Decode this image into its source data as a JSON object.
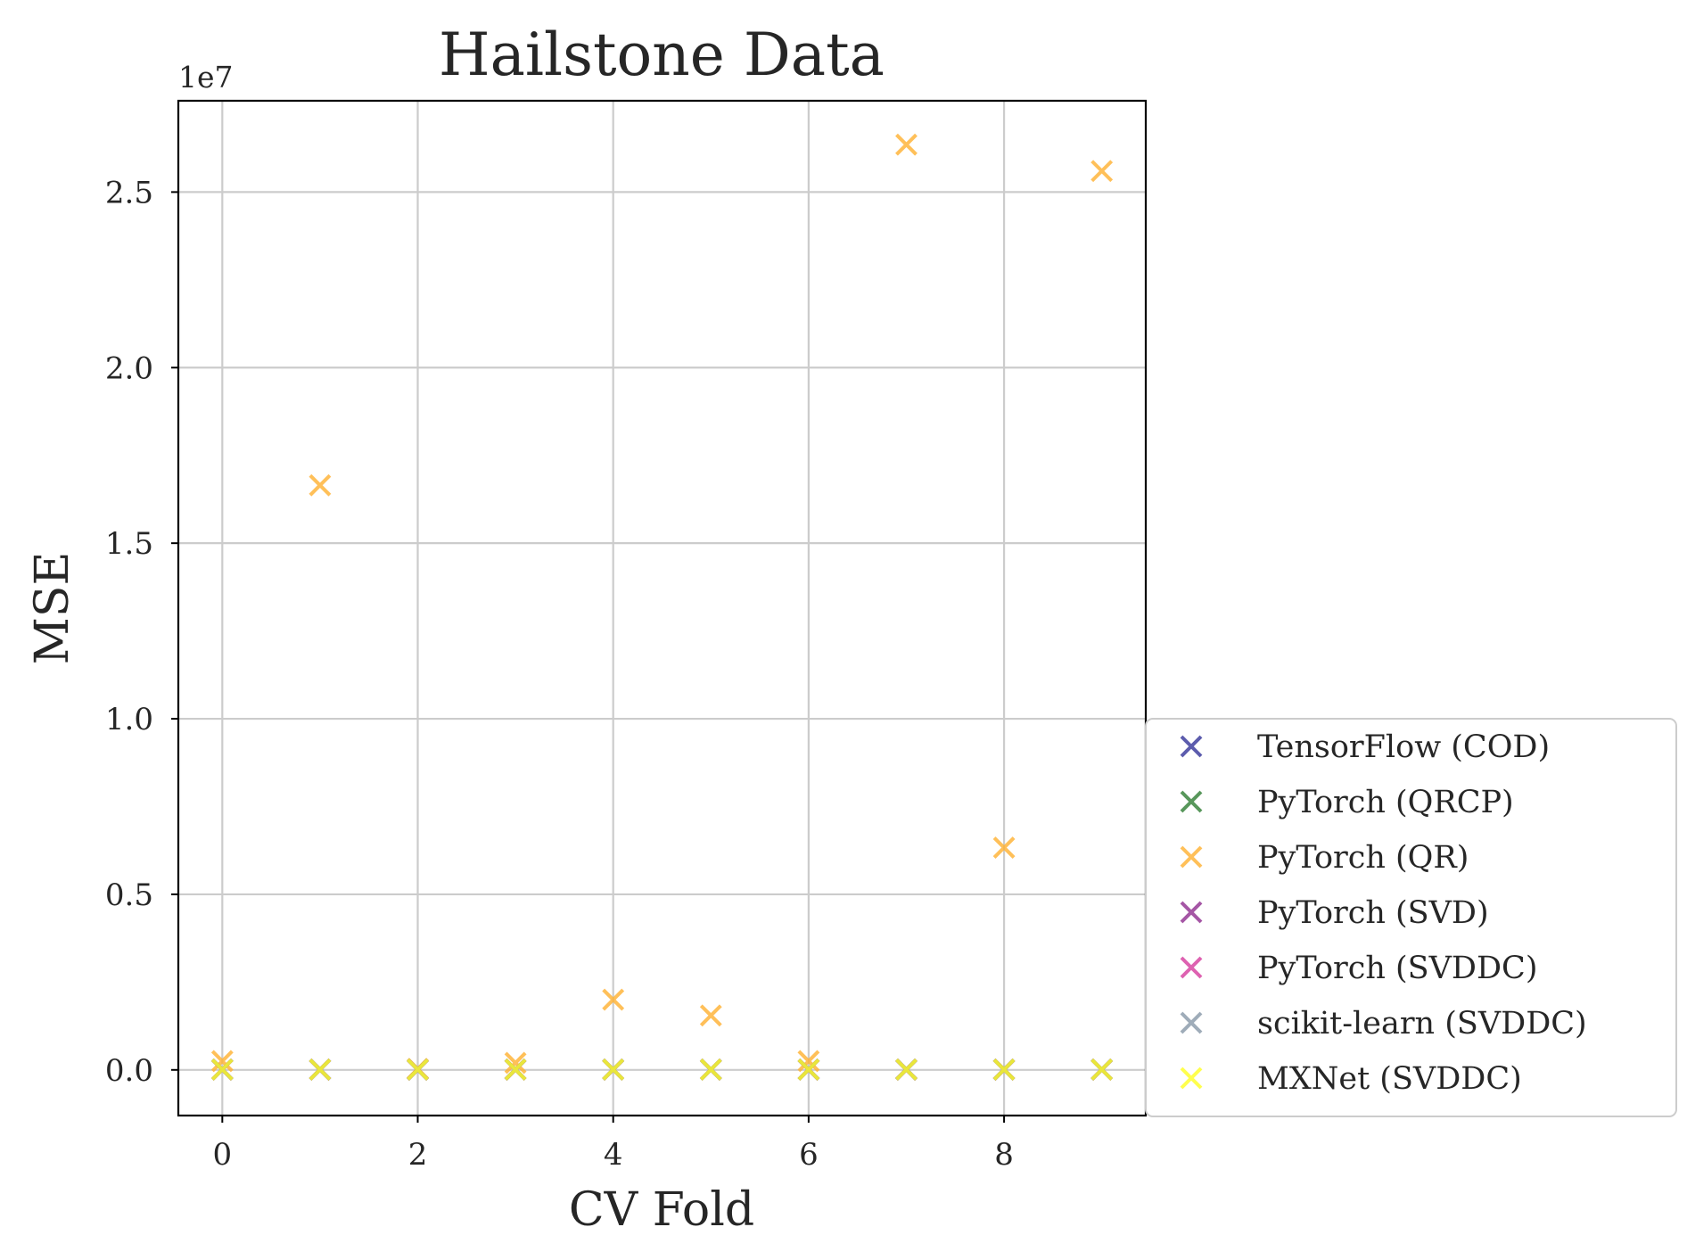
{
  "chart_data": {
    "type": "scatter",
    "title": "Hailstone Data",
    "xlabel": "CV Fold",
    "ylabel": "MSE",
    "y_offset_label": "1e7",
    "xlim": [
      -0.45,
      9.45
    ],
    "ylim": [
      -0.13,
      2.76
    ],
    "y_unit": "1e7",
    "x_ticks": [
      0,
      2,
      4,
      6,
      8
    ],
    "x_tick_labels": [
      "0",
      "2",
      "4",
      "6",
      "8"
    ],
    "y_ticks": [
      0.0,
      0.5,
      1.0,
      1.5,
      2.0,
      2.5
    ],
    "y_tick_labels": [
      "0.0",
      "0.5",
      "1.0",
      "1.5",
      "2.0",
      "2.5"
    ],
    "grid": true,
    "legend_position": "outside-lower-right",
    "marker": "x",
    "series": [
      {
        "name": "TensorFlow (COD)",
        "color": "#333399",
        "x": [
          0,
          1,
          2,
          3,
          4,
          5,
          6,
          7,
          8,
          9
        ],
        "y": [
          0.001,
          0.001,
          0.001,
          0.001,
          0.001,
          0.001,
          0.001,
          0.001,
          0.001,
          0.001
        ]
      },
      {
        "name": "PyTorch (QRCP)",
        "color": "#2e7d32",
        "x": [
          0,
          1,
          2,
          3,
          4,
          5,
          6,
          7,
          8,
          9
        ],
        "y": [
          0.001,
          0.001,
          0.001,
          0.001,
          0.001,
          0.001,
          0.001,
          0.001,
          0.001,
          0.001
        ]
      },
      {
        "name": "PyTorch (QR)",
        "color": "#ffb030",
        "x": [
          0,
          1,
          2,
          3,
          4,
          5,
          6,
          7,
          8,
          9
        ],
        "y": [
          0.025,
          1.665,
          0.003,
          0.02,
          0.2,
          0.155,
          0.025,
          2.635,
          0.633,
          2.56
        ]
      },
      {
        "name": "PyTorch (SVD)",
        "color": "#8e2c8e",
        "x": [
          0,
          1,
          2,
          3,
          4,
          5,
          6,
          7,
          8,
          9
        ],
        "y": [
          0.001,
          0.001,
          0.001,
          0.001,
          0.001,
          0.001,
          0.001,
          0.001,
          0.001,
          0.001
        ]
      },
      {
        "name": "PyTorch (SVDDC)",
        "color": "#d63b9e",
        "x": [
          0,
          1,
          2,
          3,
          4,
          5,
          6,
          7,
          8,
          9
        ],
        "y": [
          0.001,
          0.001,
          0.001,
          0.001,
          0.001,
          0.001,
          0.001,
          0.001,
          0.001,
          0.001
        ]
      },
      {
        "name": "scikit-learn (SVDDC)",
        "color": "#8797a8",
        "x": [
          0,
          1,
          2,
          3,
          4,
          5,
          6,
          7,
          8,
          9
        ],
        "y": [
          0.001,
          0.001,
          0.001,
          0.001,
          0.001,
          0.001,
          0.001,
          0.001,
          0.001,
          0.001
        ]
      },
      {
        "name": "MXNet (SVDDC)",
        "color": "#ffff22",
        "x": [
          0,
          1,
          2,
          3,
          4,
          5,
          6,
          7,
          8,
          9
        ],
        "y": [
          0.001,
          0.001,
          0.001,
          0.001,
          0.001,
          0.001,
          0.001,
          0.001,
          0.001,
          0.001
        ]
      }
    ]
  }
}
